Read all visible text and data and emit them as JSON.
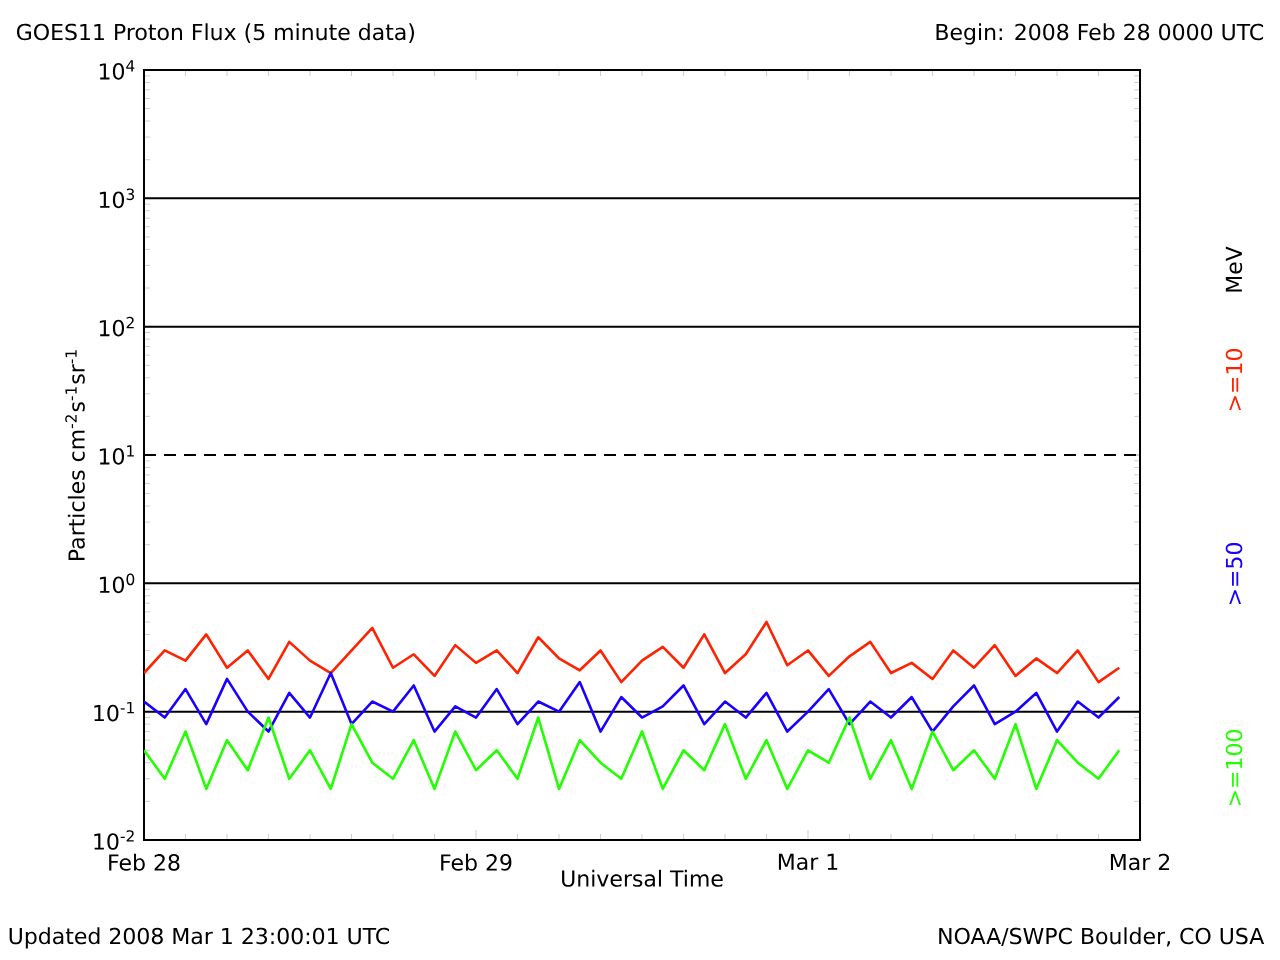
{
  "chart_data": {
    "type": "line",
    "title": "GOES11 Proton Flux (5 minute data)",
    "subtitle": "Begin: 2008 Feb 28 0000 UTC",
    "xlabel": "Universal Time",
    "ylabel": "Particles cm$^{-2}$s$^{-1}$sr$^{-1}$",
    "legend_title": "MeV",
    "annotations": [
      "Updated 2008 Mar  1 23:00:01 UTC",
      "NOAA/SWPC Boulder, CO USA"
    ],
    "x": [
      "2008-02-28T00:00",
      "2008-02-28T01:30",
      "2008-02-28T03:00",
      "2008-02-28T04:30",
      "2008-02-28T06:00",
      "2008-02-28T07:30",
      "2008-02-28T09:00",
      "2008-02-28T10:30",
      "2008-02-28T12:00",
      "2008-02-28T13:30",
      "2008-02-28T15:00",
      "2008-02-28T16:30",
      "2008-02-28T18:00",
      "2008-02-28T19:30",
      "2008-02-28T21:00",
      "2008-02-28T22:30",
      "2008-02-29T00:00",
      "2008-02-29T01:30",
      "2008-02-29T03:00",
      "2008-02-29T04:30",
      "2008-02-29T06:00",
      "2008-02-29T07:30",
      "2008-02-29T09:00",
      "2008-02-29T10:30",
      "2008-02-29T12:00",
      "2008-02-29T13:30",
      "2008-02-29T15:00",
      "2008-02-29T16:30",
      "2008-02-29T18:00",
      "2008-02-29T19:30",
      "2008-02-29T21:00",
      "2008-02-29T22:30",
      "2008-03-01T00:00",
      "2008-03-01T01:30",
      "2008-03-01T03:00",
      "2008-03-01T04:30",
      "2008-03-01T06:00",
      "2008-03-01T07:30",
      "2008-03-01T09:00",
      "2008-03-01T10:30",
      "2008-03-01T12:00",
      "2008-03-01T13:30",
      "2008-03-01T15:00",
      "2008-03-01T16:30",
      "2008-03-01T18:00",
      "2008-03-01T19:30",
      "2008-03-01T21:00",
      "2008-03-01T22:30"
    ],
    "series": [
      {
        "name": ">=10",
        "color": "#ff2200",
        "values": [
          0.2,
          0.3,
          0.25,
          0.4,
          0.22,
          0.3,
          0.18,
          0.35,
          0.25,
          0.2,
          0.3,
          0.45,
          0.22,
          0.28,
          0.19,
          0.33,
          0.24,
          0.3,
          0.2,
          0.38,
          0.26,
          0.21,
          0.3,
          0.17,
          0.25,
          0.32,
          0.22,
          0.4,
          0.2,
          0.28,
          0.5,
          0.23,
          0.3,
          0.19,
          0.27,
          0.35,
          0.2,
          0.24,
          0.18,
          0.3,
          0.22,
          0.33,
          0.19,
          0.26,
          0.2,
          0.3,
          0.17,
          0.22
        ]
      },
      {
        "name": ">=50",
        "color": "#1a00ff",
        "values": [
          0.12,
          0.09,
          0.15,
          0.08,
          0.18,
          0.1,
          0.07,
          0.14,
          0.09,
          0.2,
          0.08,
          0.12,
          0.1,
          0.16,
          0.07,
          0.11,
          0.09,
          0.15,
          0.08,
          0.12,
          0.1,
          0.17,
          0.07,
          0.13,
          0.09,
          0.11,
          0.16,
          0.08,
          0.12,
          0.09,
          0.14,
          0.07,
          0.1,
          0.15,
          0.08,
          0.12,
          0.09,
          0.13,
          0.07,
          0.11,
          0.16,
          0.08,
          0.1,
          0.14,
          0.07,
          0.12,
          0.09,
          0.13
        ]
      },
      {
        "name": ">=100",
        "color": "#22ff00",
        "values": [
          0.05,
          0.03,
          0.07,
          0.025,
          0.06,
          0.035,
          0.09,
          0.03,
          0.05,
          0.025,
          0.08,
          0.04,
          0.03,
          0.06,
          0.025,
          0.07,
          0.035,
          0.05,
          0.03,
          0.09,
          0.025,
          0.06,
          0.04,
          0.03,
          0.07,
          0.025,
          0.05,
          0.035,
          0.08,
          0.03,
          0.06,
          0.025,
          0.05,
          0.04,
          0.09,
          0.03,
          0.06,
          0.025,
          0.07,
          0.035,
          0.05,
          0.03,
          0.08,
          0.025,
          0.06,
          0.04,
          0.03,
          0.05
        ]
      }
    ],
    "log": "y",
    "grid": "y",
    "legend": "right",
    "xlim": [
      "2008-02-28",
      "2008-03-02"
    ],
    "xticks": [
      {
        "value": "2008-02-28",
        "label": "Feb 28"
      },
      {
        "value": "2008-02-29",
        "label": "Feb 29"
      },
      {
        "value": "2008-03-01",
        "label": "Mar 1"
      },
      {
        "value": "2008-03-02",
        "label": "Mar 2"
      }
    ],
    "ylim": [
      0.01,
      10000
    ],
    "yticks": [
      {
        "value": 0.01,
        "label": "10$^{-2}$"
      },
      {
        "value": 0.1,
        "label": "10$^{-1}$"
      },
      {
        "value": 1,
        "label": "10$^{0}$"
      },
      {
        "value": 10,
        "label": "10$^{1}$"
      },
      {
        "value": 100,
        "label": "10$^{2}$"
      },
      {
        "value": 1000,
        "label": "10$^{3}$"
      },
      {
        "value": 10000,
        "label": "10$^{4}$"
      }
    ],
    "ref_lines": [
      {
        "axis": "y",
        "value": 10,
        "line_style": "dashed"
      }
    ]
  }
}
